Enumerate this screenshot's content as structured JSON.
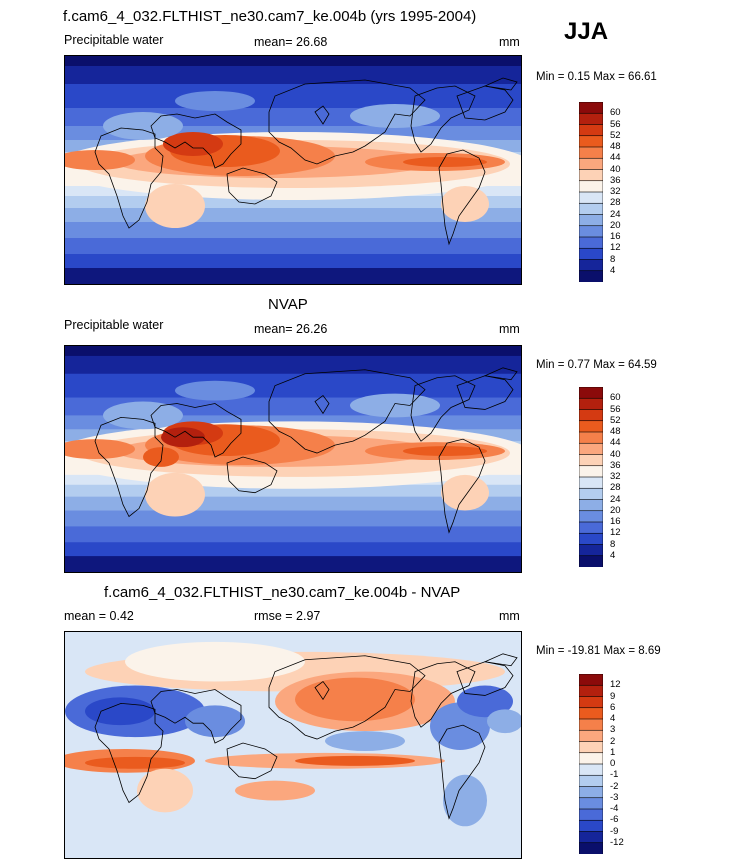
{
  "season": "JJA",
  "panels": [
    {
      "title": "f.cam6_4_032.FLTHIST_ne30.cam7_ke.004b (yrs 1995-2004)",
      "left_label": "Precipitable water",
      "center_label": "mean=  26.68",
      "units": "mm",
      "minmax": "Min =   0.15 Max =  66.61",
      "field": "precipitable-water-model",
      "colorbar_levels": [
        "60",
        "56",
        "52",
        "48",
        "44",
        "40",
        "36",
        "32",
        "28",
        "24",
        "20",
        "16",
        "12",
        "8",
        "4"
      ],
      "colorbar_colors": [
        "#8b0a0a",
        "#b3200e",
        "#d43a12",
        "#ea5b1e",
        "#f5804a",
        "#fba77e",
        "#fdd2b6",
        "#fbf3ea",
        "#d9e6f6",
        "#b3cdef",
        "#8daee6",
        "#6a8de0",
        "#4a6ad8",
        "#2a48c8",
        "#15259a",
        "#0a0f6b"
      ]
    },
    {
      "title": "NVAP",
      "left_label": "Precipitable water",
      "center_label": "mean=  26.26",
      "units": "mm",
      "minmax": "Min =   0.77 Max =  64.59",
      "field": "precipitable-water-nvap",
      "colorbar_levels": [
        "60",
        "56",
        "52",
        "48",
        "44",
        "40",
        "36",
        "32",
        "28",
        "24",
        "20",
        "16",
        "12",
        "8",
        "4"
      ],
      "colorbar_colors": [
        "#8b0a0a",
        "#b3200e",
        "#d43a12",
        "#ea5b1e",
        "#f5804a",
        "#fba77e",
        "#fdd2b6",
        "#fbf3ea",
        "#d9e6f6",
        "#b3cdef",
        "#8daee6",
        "#6a8de0",
        "#4a6ad8",
        "#2a48c8",
        "#15259a",
        "#0a0f6b"
      ]
    },
    {
      "title": "f.cam6_4_032.FLTHIST_ne30.cam7_ke.004b - NVAP",
      "left_label": "mean =   0.42",
      "center_label": "rmse =   2.97",
      "units": "mm",
      "minmax": "Min = -19.81 Max =   8.69",
      "field": "precipitable-water-difference",
      "colorbar_levels": [
        "12",
        "9",
        "6",
        "4",
        "3",
        "2",
        "1",
        "0",
        "-1",
        "-2",
        "-3",
        "-4",
        "-6",
        "-9",
        "-12"
      ],
      "colorbar_colors": [
        "#8b0a0a",
        "#b3200e",
        "#d43a12",
        "#ea5b1e",
        "#f5804a",
        "#fba77e",
        "#fdd2b6",
        "#fbf3ea",
        "#d9e6f6",
        "#b3cdef",
        "#8daee6",
        "#6a8de0",
        "#4a6ad8",
        "#2a48c8",
        "#15259a",
        "#0a0f6b"
      ]
    }
  ]
}
